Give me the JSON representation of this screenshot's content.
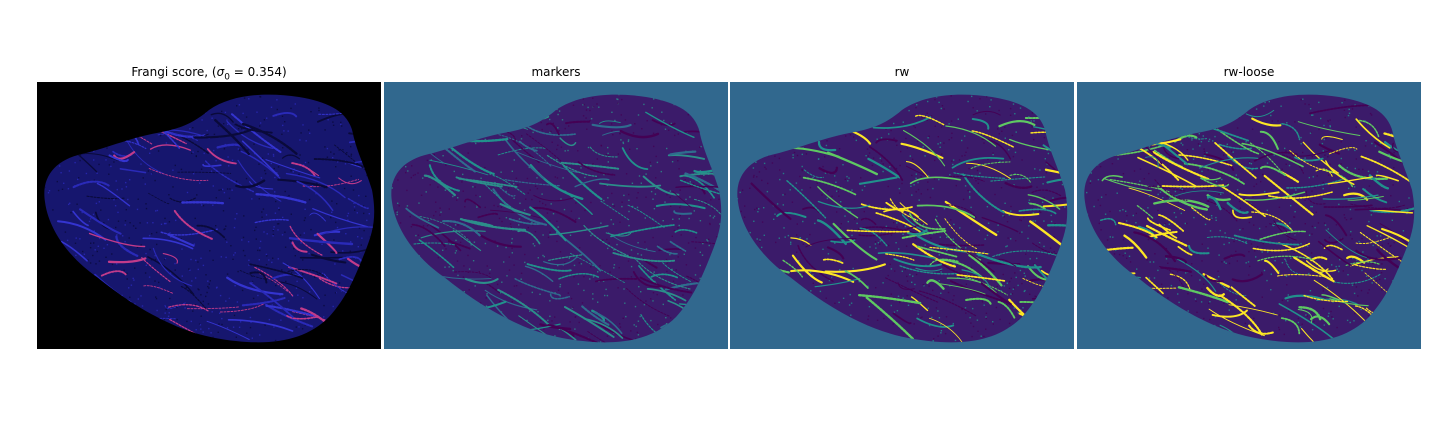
{
  "figure": {
    "panels": [
      {
        "title_prefix": "Frangi score, (",
        "title_math_symbol": "σ",
        "title_math_subscript": "0",
        "title_math_rest": " = 0.354)",
        "background": "#000000",
        "shape_fill": "#16166e",
        "streak_colors": [
          "#2a2ab8",
          "#0a0a3a",
          "#c23b8a",
          "#3434d0"
        ],
        "streak_count": 140
      },
      {
        "title": "markers",
        "background": "#31688e",
        "shape_fill": "#3b1b6a",
        "streak_colors": [
          "#440154",
          "#2c8e8a",
          "#21918c",
          "#2f6c8e"
        ],
        "streak_count": 150
      },
      {
        "title": "rw",
        "background": "#31688e",
        "shape_fill": "#3b1b6a",
        "streak_colors": [
          "#440154",
          "#21918c",
          "#5ec962",
          "#fde725"
        ],
        "streak_count": 160
      },
      {
        "title": "rw-loose",
        "background": "#31688e",
        "shape_fill": "#3b1b6a",
        "streak_colors": [
          "#440154",
          "#21918c",
          "#fde725",
          "#5ec962",
          "#fde725"
        ],
        "streak_count": 190
      }
    ]
  }
}
